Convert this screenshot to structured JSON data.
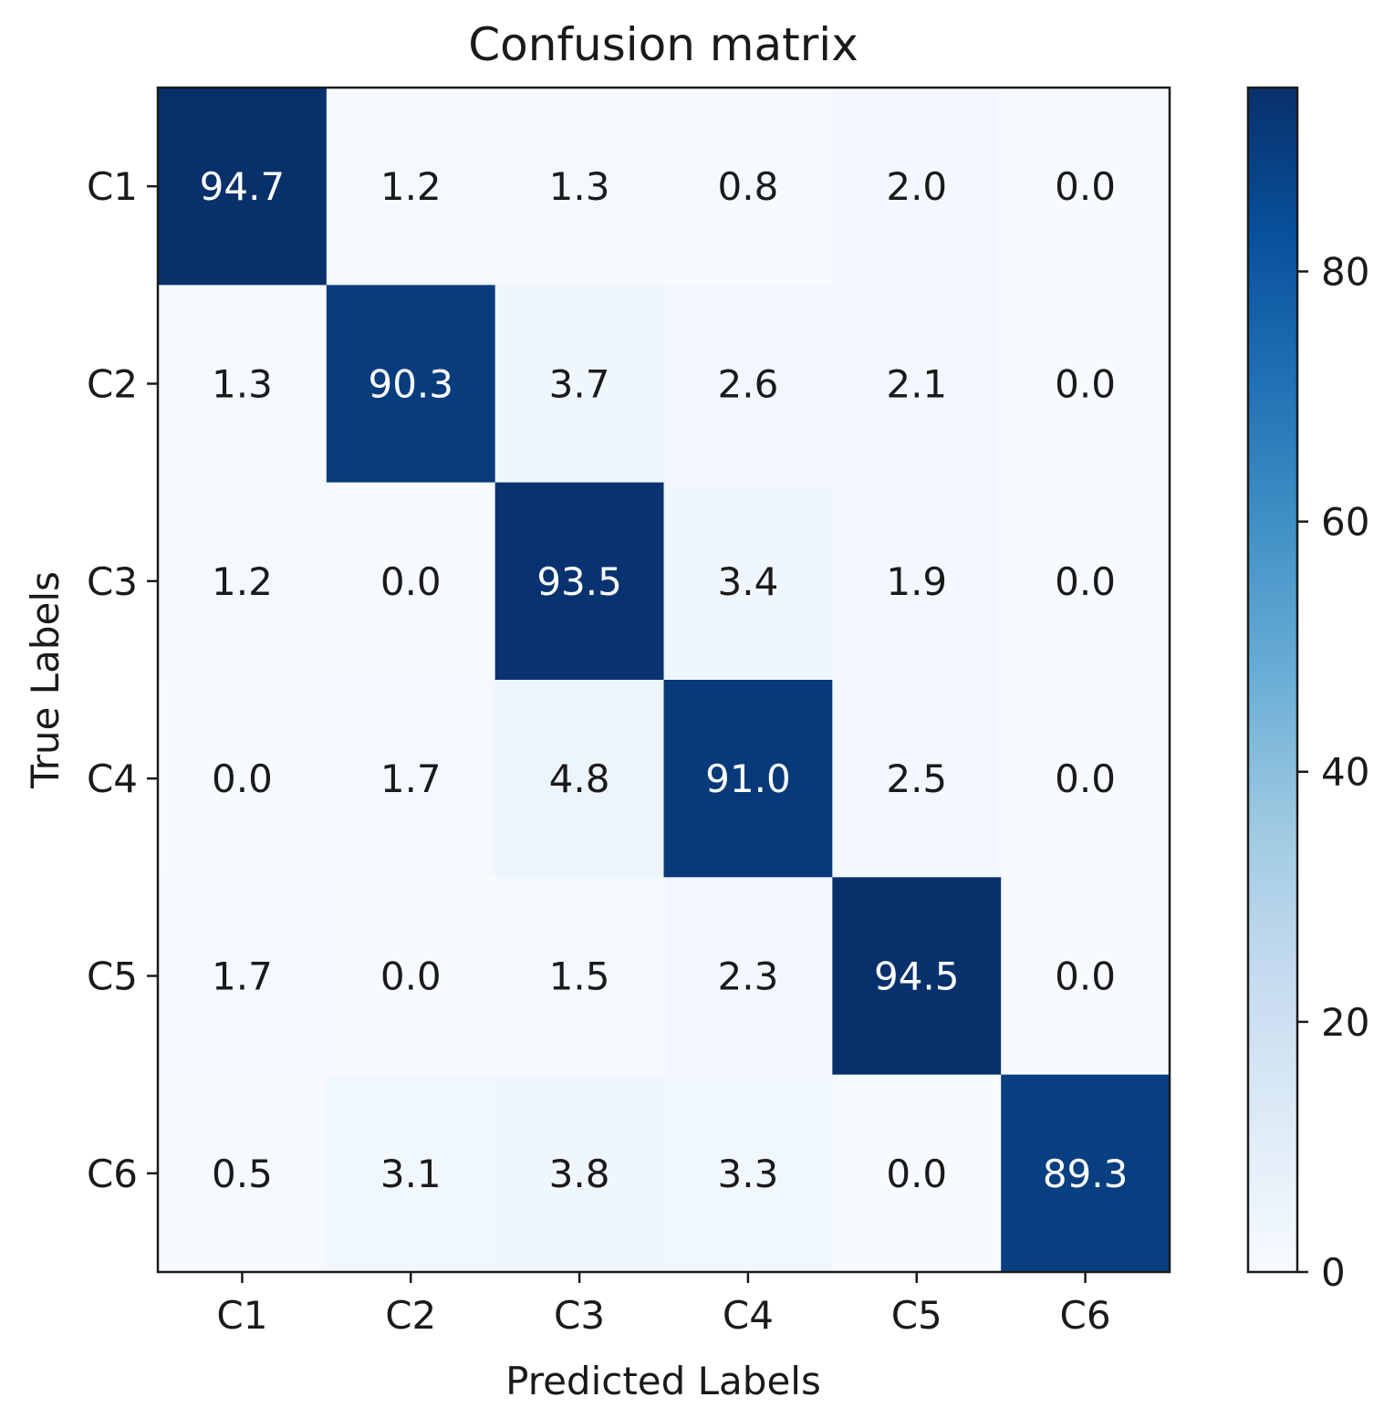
{
  "chart_data": {
    "type": "heatmap",
    "title": "Confusion matrix",
    "xlabel": "Predicted Labels",
    "ylabel": "True Labels",
    "x_categories": [
      "C1",
      "C2",
      "C3",
      "C4",
      "C5",
      "C6"
    ],
    "y_categories": [
      "C1",
      "C2",
      "C3",
      "C4",
      "C5",
      "C6"
    ],
    "values": [
      [
        94.7,
        1.2,
        1.3,
        0.8,
        2.0,
        0.0
      ],
      [
        1.3,
        90.3,
        3.7,
        2.6,
        2.1,
        0.0
      ],
      [
        1.2,
        0.0,
        93.5,
        3.4,
        1.9,
        0.0
      ],
      [
        0.0,
        1.7,
        4.8,
        91.0,
        2.5,
        0.0
      ],
      [
        1.7,
        0.0,
        1.5,
        2.3,
        94.5,
        0.0
      ],
      [
        0.5,
        3.1,
        3.8,
        3.3,
        0.0,
        89.3
      ]
    ],
    "value_labels": [
      [
        "94.7",
        "1.2",
        "1.3",
        "0.8",
        "2.0",
        "0.0"
      ],
      [
        "1.3",
        "90.3",
        "3.7",
        "2.6",
        "2.1",
        "0.0"
      ],
      [
        "1.2",
        "0.0",
        "93.5",
        "3.4",
        "1.9",
        "0.0"
      ],
      [
        "0.0",
        "1.7",
        "4.8",
        "91.0",
        "2.5",
        "0.0"
      ],
      [
        "1.7",
        "0.0",
        "1.5",
        "2.3",
        "94.5",
        "0.0"
      ],
      [
        "0.5",
        "3.1",
        "3.8",
        "3.3",
        "0.0",
        "89.3"
      ]
    ],
    "colorbar": {
      "range": [
        0,
        94.7
      ],
      "ticks": [
        0,
        20,
        40,
        60,
        80
      ],
      "tick_labels": [
        "0",
        "20",
        "40",
        "60",
        "80"
      ]
    },
    "colormap": "Blues",
    "colormap_stops": [
      "#f7fbff",
      "#deebf7",
      "#c6dbef",
      "#9ecae1",
      "#6baed6",
      "#4292c6",
      "#2171b5",
      "#08519c",
      "#08306b"
    ],
    "text_color_dark": "#1a1a1a",
    "text_color_light": "#ffffff"
  }
}
